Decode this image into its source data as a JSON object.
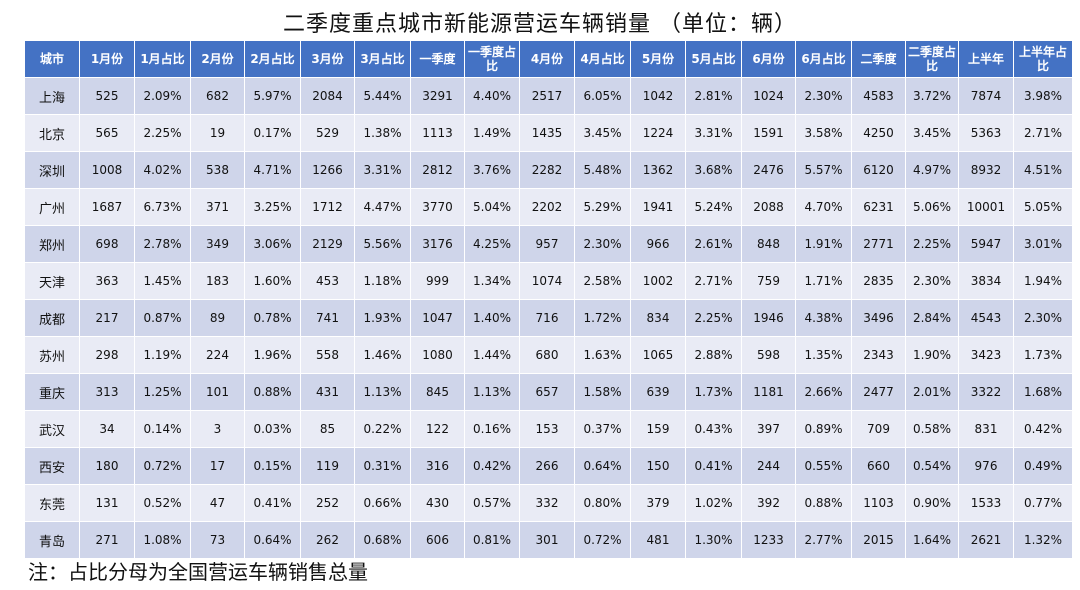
{
  "title": "二季度重点城市新能源营运车辆销量 （单位：辆）",
  "headers": [
    "城市",
    "1月份",
    "1月占比",
    "2月份",
    "2月占比",
    "3月份",
    "3月占比",
    "一季度",
    "一季度占比",
    "4月份",
    "4月占比",
    "5月份",
    "5月占比",
    "6月份",
    "6月占比",
    "二季度",
    "二季度占比",
    "上半年",
    "上半年占比"
  ],
  "rows": [
    [
      "上海",
      "525",
      "2.09%",
      "682",
      "5.97%",
      "2084",
      "5.44%",
      "3291",
      "4.40%",
      "2517",
      "6.05%",
      "1042",
      "2.81%",
      "1024",
      "2.30%",
      "4583",
      "3.72%",
      "7874",
      "3.98%"
    ],
    [
      "北京",
      "565",
      "2.25%",
      "19",
      "0.17%",
      "529",
      "1.38%",
      "1113",
      "1.49%",
      "1435",
      "3.45%",
      "1224",
      "3.31%",
      "1591",
      "3.58%",
      "4250",
      "3.45%",
      "5363",
      "2.71%"
    ],
    [
      "深圳",
      "1008",
      "4.02%",
      "538",
      "4.71%",
      "1266",
      "3.31%",
      "2812",
      "3.76%",
      "2282",
      "5.48%",
      "1362",
      "3.68%",
      "2476",
      "5.57%",
      "6120",
      "4.97%",
      "8932",
      "4.51%"
    ],
    [
      "广州",
      "1687",
      "6.73%",
      "371",
      "3.25%",
      "1712",
      "4.47%",
      "3770",
      "5.04%",
      "2202",
      "5.29%",
      "1941",
      "5.24%",
      "2088",
      "4.70%",
      "6231",
      "5.06%",
      "10001",
      "5.05%"
    ],
    [
      "郑州",
      "698",
      "2.78%",
      "349",
      "3.06%",
      "2129",
      "5.56%",
      "3176",
      "4.25%",
      "957",
      "2.30%",
      "966",
      "2.61%",
      "848",
      "1.91%",
      "2771",
      "2.25%",
      "5947",
      "3.01%"
    ],
    [
      "天津",
      "363",
      "1.45%",
      "183",
      "1.60%",
      "453",
      "1.18%",
      "999",
      "1.34%",
      "1074",
      "2.58%",
      "1002",
      "2.71%",
      "759",
      "1.71%",
      "2835",
      "2.30%",
      "3834",
      "1.94%"
    ],
    [
      "成都",
      "217",
      "0.87%",
      "89",
      "0.78%",
      "741",
      "1.93%",
      "1047",
      "1.40%",
      "716",
      "1.72%",
      "834",
      "2.25%",
      "1946",
      "4.38%",
      "3496",
      "2.84%",
      "4543",
      "2.30%"
    ],
    [
      "苏州",
      "298",
      "1.19%",
      "224",
      "1.96%",
      "558",
      "1.46%",
      "1080",
      "1.44%",
      "680",
      "1.63%",
      "1065",
      "2.88%",
      "598",
      "1.35%",
      "2343",
      "1.90%",
      "3423",
      "1.73%"
    ],
    [
      "重庆",
      "313",
      "1.25%",
      "101",
      "0.88%",
      "431",
      "1.13%",
      "845",
      "1.13%",
      "657",
      "1.58%",
      "639",
      "1.73%",
      "1181",
      "2.66%",
      "2477",
      "2.01%",
      "3322",
      "1.68%"
    ],
    [
      "武汉",
      "34",
      "0.14%",
      "3",
      "0.03%",
      "85",
      "0.22%",
      "122",
      "0.16%",
      "153",
      "0.37%",
      "159",
      "0.43%",
      "397",
      "0.89%",
      "709",
      "0.58%",
      "831",
      "0.42%"
    ],
    [
      "西安",
      "180",
      "0.72%",
      "17",
      "0.15%",
      "119",
      "0.31%",
      "316",
      "0.42%",
      "266",
      "0.64%",
      "150",
      "0.41%",
      "244",
      "0.55%",
      "660",
      "0.54%",
      "976",
      "0.49%"
    ],
    [
      "东莞",
      "131",
      "0.52%",
      "47",
      "0.41%",
      "252",
      "0.66%",
      "430",
      "0.57%",
      "332",
      "0.80%",
      "379",
      "1.02%",
      "392",
      "0.88%",
      "1103",
      "0.90%",
      "1533",
      "0.77%"
    ],
    [
      "青岛",
      "271",
      "1.08%",
      "73",
      "0.64%",
      "262",
      "0.68%",
      "606",
      "0.81%",
      "301",
      "0.72%",
      "481",
      "1.30%",
      "1233",
      "2.77%",
      "2015",
      "1.64%",
      "2621",
      "1.32%"
    ]
  ],
  "note": "注：占比分母为全国营运车辆销售总量"
}
